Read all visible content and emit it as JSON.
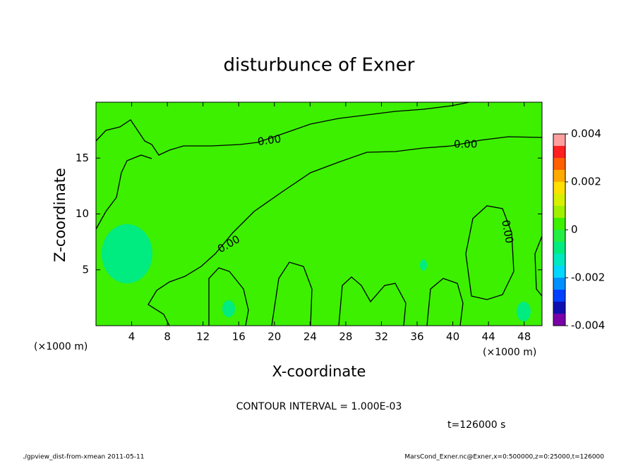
{
  "chart_data": {
    "type": "contour",
    "title": "disturbunce of Exner",
    "xlabel": "X-coordinate",
    "ylabel": "Z-coordinate",
    "x_unit": "(×1000 m)",
    "xlim": [
      0,
      50
    ],
    "xticks": [
      4,
      8,
      12,
      16,
      20,
      24,
      28,
      32,
      36,
      40,
      44,
      48
    ],
    "ylim": [
      0,
      20
    ],
    "yticks": [
      5,
      10,
      15
    ],
    "colorbar": {
      "levels": [
        -0.004,
        -0.0035,
        -0.003,
        -0.0025,
        -0.002,
        -0.0015,
        -0.001,
        -0.0005,
        0,
        0.0005,
        0.001,
        0.0015,
        0.002,
        0.0025,
        0.003,
        0.0035,
        0.004
      ],
      "colors": [
        "#7a00a8",
        "#1010b0",
        "#0040ff",
        "#0090ff",
        "#00d8ff",
        "#00e8c0",
        "#00ec80",
        "#22ee44",
        "#3cf000",
        "#a0f000",
        "#d8f000",
        "#ffe000",
        "#ffaa00",
        "#ff6000",
        "#ff2020",
        "#ffa0a0"
      ],
      "ticks": [
        -0.004,
        -0.002,
        0,
        0.002,
        0.004
      ]
    },
    "contour_labels": [
      "0.00",
      "0.00",
      "0.00",
      "0.00"
    ],
    "contour_interval_text": "CONTOUR INTERVAL = 1.000E-03",
    "time_text": "t=126000 s",
    "footer_left": "./gpview_dist-from-xmean  2011-05-11",
    "footer_right": "MarsCond_Exner.nc@Exner,x=0:500000,z=0:25000,t=126000"
  }
}
